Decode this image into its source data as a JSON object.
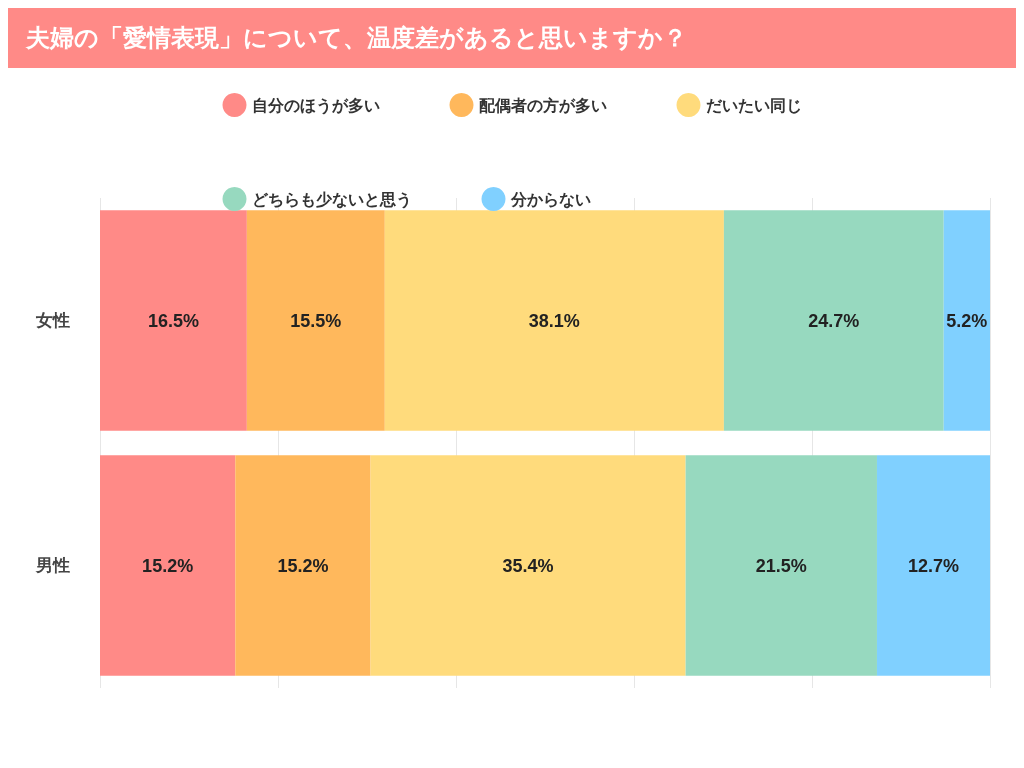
{
  "chart_data": {
    "type": "bar",
    "title": "夫婦の「愛情表現」について、温度差があると思いますか？",
    "orientation": "horizontal",
    "stacked": true,
    "categories": [
      "女性",
      "男性"
    ],
    "series": [
      {
        "name": "自分のほうが多い",
        "color": "#ff8a87",
        "values": [
          16.5,
          15.2
        ],
        "value_labels": [
          "16.5%",
          "15.2%"
        ]
      },
      {
        "name": "配偶者の方が多い",
        "color": "#ffb85c",
        "values": [
          15.5,
          15.2
        ],
        "value_labels": [
          "15.5%",
          "15.2%"
        ]
      },
      {
        "name": "だいたい同じ",
        "color": "#ffdb7c",
        "values": [
          38.1,
          35.4
        ],
        "value_labels": [
          "38.1%",
          "35.4%"
        ]
      },
      {
        "name": "どちらも少ないと思う",
        "color": "#97d9bf",
        "values": [
          24.7,
          21.5
        ],
        "value_labels": [
          "24.7%",
          "21.5%"
        ]
      },
      {
        "name": "分からない",
        "color": "#80d0ff",
        "values": [
          5.2,
          12.7
        ],
        "value_labels": [
          "5.2%",
          "12.7%"
        ]
      }
    ],
    "xlim": [
      0,
      100
    ],
    "xticks": [
      {
        "value": 0,
        "label": null
      },
      {
        "value": 20,
        "label": null
      },
      {
        "value": 40,
        "label": null
      },
      {
        "value": 60,
        "label": null
      },
      {
        "value": 80,
        "label": null
      },
      {
        "value": 100,
        "label": null
      }
    ],
    "tick_labels": "y",
    "grid": "x",
    "legend": "top"
  }
}
